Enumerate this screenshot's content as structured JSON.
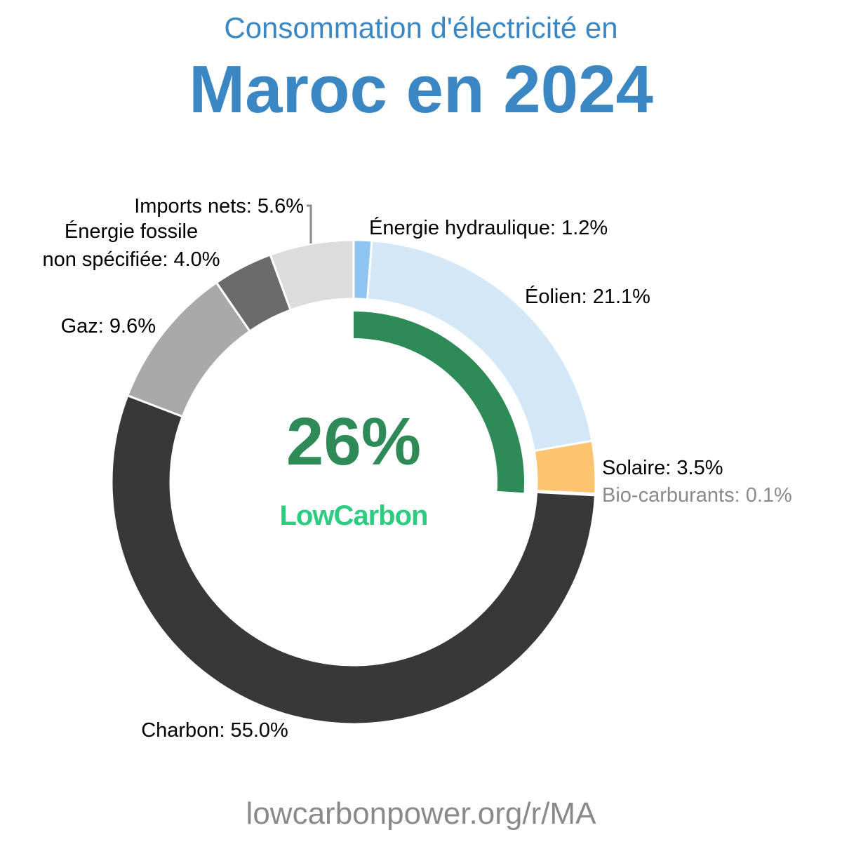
{
  "header": {
    "subtitle": "Consommation d'électricité en",
    "title": "Maroc en 2024",
    "color": "#3a87c4"
  },
  "footer": {
    "url": "lowcarbonpower.org/r/MA",
    "color": "#8a8a8a"
  },
  "center": {
    "value": "26%",
    "brand": "LowCarbon",
    "value_color": "#2e8b57",
    "brand_color": "#2ecc80",
    "lowcarbon_fraction": 0.26,
    "arc_color": "#2e8b57"
  },
  "chart_data": {
    "type": "pie",
    "style": "donut",
    "title": "Consommation d'électricité en Maroc en 2024",
    "start": "top",
    "direction": "clockwise",
    "slices": [
      {
        "name": "Énergie hydraulique",
        "value": 1.2,
        "label": "Énergie hydraulique: 1.2%",
        "color": "#90c4f0",
        "label_color": "#000000"
      },
      {
        "name": "Éolien",
        "value": 21.1,
        "label": "Éolien: 21.1%",
        "color": "#d3e7f7",
        "label_color": "#000000"
      },
      {
        "name": "Solaire",
        "value": 3.5,
        "label": "Solaire: 3.5%",
        "color": "#fec470",
        "label_color": "#000000"
      },
      {
        "name": "Bio-carburants",
        "value": 0.1,
        "label": "Bio-carburants: 0.1%",
        "color": "#7d9e5a",
        "label_color": "#8a8a8a"
      },
      {
        "name": "Charbon",
        "value": 55.0,
        "label": "Charbon: 55.0%",
        "color": "#383838",
        "label_color": "#000000"
      },
      {
        "name": "Gaz",
        "value": 9.6,
        "label": "Gaz: 9.6%",
        "color": "#a9a9a9",
        "label_color": "#000000"
      },
      {
        "name": "Énergie fossile non spécifiée",
        "value": 4.0,
        "label": "Énergie fossile non spécifiée: 4.0%",
        "color": "#6b6b6b",
        "label_color": "#000000"
      },
      {
        "name": "Imports nets",
        "value": 5.6,
        "label": "Imports nets: 5.6%",
        "color": "#dcdcdc",
        "label_color": "#000000"
      }
    ],
    "labels": {
      "hydro": "Énergie hydraulique: 1.2%",
      "wind": "Éolien: 21.1%",
      "solar": "Solaire: 3.5%",
      "biofuel": "Bio-carburants: 0.1%",
      "coal": "Charbon: 55.0%",
      "gas": "Gaz: 9.6%",
      "fossil_line1": "Énergie fossile",
      "fossil_line2": "non spécifiée: 4.0%",
      "imports": "Imports nets: 5.6%"
    }
  }
}
